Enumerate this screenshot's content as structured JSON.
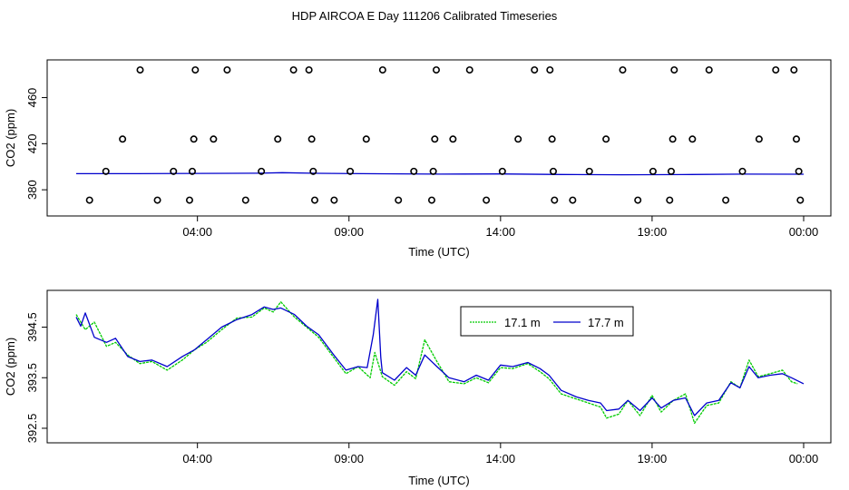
{
  "page": {
    "title": "HDP AIRCOA E  Day 111206  Calibrated Timeseries"
  },
  "chart_data": [
    {
      "type": "scatter",
      "xlabel": "Time (UTC)",
      "ylabel": "CO2 (ppm)",
      "x_tick_labels": [
        "04:00",
        "09:00",
        "14:00",
        "19:00",
        "00:00"
      ],
      "x_tick_hours": [
        4,
        9,
        14,
        19,
        24
      ],
      "xlim_hours": [
        0,
        24
      ],
      "y_ticks": [
        380,
        420,
        460
      ],
      "ylim": [
        362,
        488
      ],
      "point_series": {
        "name": "",
        "marker": "open-circle",
        "color": "#000000",
        "points": [
          [
            0.44,
            371
          ],
          [
            0.98,
            396
          ],
          [
            1.53,
            424
          ],
          [
            2.11,
            484
          ],
          [
            2.68,
            371
          ],
          [
            3.21,
            396
          ],
          [
            3.74,
            371
          ],
          [
            3.83,
            396
          ],
          [
            3.88,
            424
          ],
          [
            3.93,
            484
          ],
          [
            4.53,
            424
          ],
          [
            4.98,
            484
          ],
          [
            5.59,
            371
          ],
          [
            6.11,
            396
          ],
          [
            6.65,
            424
          ],
          [
            7.17,
            484
          ],
          [
            7.68,
            484
          ],
          [
            7.77,
            424
          ],
          [
            7.82,
            396
          ],
          [
            7.87,
            371
          ],
          [
            8.51,
            371
          ],
          [
            9.04,
            396
          ],
          [
            9.57,
            424
          ],
          [
            10.11,
            484
          ],
          [
            10.63,
            371
          ],
          [
            11.14,
            396
          ],
          [
            11.73,
            371
          ],
          [
            11.78,
            396
          ],
          [
            11.83,
            424
          ],
          [
            11.88,
            484
          ],
          [
            12.43,
            424
          ],
          [
            12.98,
            484
          ],
          [
            13.53,
            371
          ],
          [
            14.06,
            396
          ],
          [
            14.58,
            424
          ],
          [
            15.12,
            484
          ],
          [
            15.63,
            484
          ],
          [
            15.7,
            424
          ],
          [
            15.74,
            396
          ],
          [
            15.78,
            371
          ],
          [
            16.38,
            371
          ],
          [
            16.93,
            396
          ],
          [
            17.48,
            424
          ],
          [
            18.03,
            484
          ],
          [
            18.53,
            371
          ],
          [
            19.03,
            396
          ],
          [
            19.58,
            371
          ],
          [
            19.63,
            396
          ],
          [
            19.68,
            424
          ],
          [
            19.73,
            484
          ],
          [
            20.33,
            424
          ],
          [
            20.88,
            484
          ],
          [
            21.43,
            371
          ],
          [
            21.98,
            396
          ],
          [
            22.53,
            424
          ],
          [
            23.08,
            484
          ],
          [
            23.68,
            484
          ],
          [
            23.76,
            424
          ],
          [
            23.84,
            396
          ],
          [
            23.89,
            371
          ]
        ]
      },
      "line_series": [
        {
          "name": "",
          "color": "#0000cc",
          "points": [
            [
              0.0,
              394.0
            ],
            [
              2.0,
              394.0
            ],
            [
              4.0,
              394.2
            ],
            [
              6.0,
              394.4
            ],
            [
              6.8,
              394.8
            ],
            [
              8.0,
              394.3
            ],
            [
              10.0,
              393.9
            ],
            [
              12.0,
              393.6
            ],
            [
              14.0,
              393.7
            ],
            [
              16.0,
              393.3
            ],
            [
              18.0,
              393.0
            ],
            [
              20.0,
              393.2
            ],
            [
              22.0,
              393.6
            ],
            [
              24.0,
              393.5
            ]
          ]
        }
      ]
    },
    {
      "type": "line",
      "xlabel": "Time (UTC)",
      "ylabel": "CO2 (ppm)",
      "x_tick_labels": [
        "04:00",
        "09:00",
        "14:00",
        "19:00",
        "00:00"
      ],
      "x_tick_hours": [
        4,
        9,
        14,
        19,
        24
      ],
      "xlim_hours": [
        0,
        24
      ],
      "y_ticks": [
        392.5,
        393.5,
        394.5
      ],
      "y_tick_labels": [
        "392.5",
        "393.5",
        "394.5"
      ],
      "ylim": [
        392.32,
        395.12
      ],
      "legend": {
        "placement": "top-center"
      },
      "series": [
        {
          "name": "17.1 m",
          "color": "#00cc00",
          "points": [
            [
              0.0,
              394.75
            ],
            [
              0.3,
              394.45
            ],
            [
              0.6,
              394.6
            ],
            [
              1.0,
              394.12
            ],
            [
              1.3,
              394.2
            ],
            [
              1.7,
              393.95
            ],
            [
              2.1,
              393.78
            ],
            [
              2.5,
              393.82
            ],
            [
              3.0,
              393.65
            ],
            [
              3.5,
              393.85
            ],
            [
              3.9,
              394.05
            ],
            [
              4.3,
              394.2
            ],
            [
              4.8,
              394.45
            ],
            [
              5.3,
              394.68
            ],
            [
              5.8,
              394.7
            ],
            [
              6.2,
              394.88
            ],
            [
              6.5,
              394.8
            ],
            [
              6.75,
              395.0
            ],
            [
              7.2,
              394.7
            ],
            [
              7.6,
              394.5
            ],
            [
              8.0,
              394.3
            ],
            [
              8.5,
              393.9
            ],
            [
              8.9,
              393.58
            ],
            [
              9.3,
              393.72
            ],
            [
              9.7,
              393.5
            ],
            [
              9.85,
              394.0
            ],
            [
              10.1,
              393.52
            ],
            [
              10.5,
              393.35
            ],
            [
              10.9,
              393.62
            ],
            [
              11.2,
              393.48
            ],
            [
              11.5,
              394.25
            ],
            [
              11.9,
              393.82
            ],
            [
              12.3,
              393.42
            ],
            [
              12.8,
              393.38
            ],
            [
              13.2,
              393.5
            ],
            [
              13.6,
              393.4
            ],
            [
              14.0,
              393.7
            ],
            [
              14.4,
              393.68
            ],
            [
              14.9,
              393.78
            ],
            [
              15.3,
              393.62
            ],
            [
              15.6,
              393.48
            ],
            [
              16.0,
              393.18
            ],
            [
              16.5,
              393.08
            ],
            [
              16.9,
              393.0
            ],
            [
              17.3,
              392.92
            ],
            [
              17.5,
              392.7
            ],
            [
              17.9,
              392.78
            ],
            [
              18.2,
              393.05
            ],
            [
              18.6,
              392.75
            ],
            [
              19.0,
              393.15
            ],
            [
              19.3,
              392.82
            ],
            [
              19.7,
              393.05
            ],
            [
              20.1,
              393.18
            ],
            [
              20.4,
              392.6
            ],
            [
              20.8,
              392.95
            ],
            [
              21.2,
              393.0
            ],
            [
              21.6,
              393.42
            ],
            [
              21.9,
              393.3
            ],
            [
              22.2,
              393.85
            ],
            [
              22.5,
              393.52
            ],
            [
              22.9,
              393.58
            ],
            [
              23.3,
              393.65
            ],
            [
              23.6,
              393.42
            ],
            [
              23.8,
              393.38
            ]
          ]
        },
        {
          "name": "17.7 m",
          "color": "#0000cc",
          "points": [
            [
              0.0,
              394.7
            ],
            [
              0.15,
              394.52
            ],
            [
              0.3,
              394.78
            ],
            [
              0.6,
              394.3
            ],
            [
              1.0,
              394.2
            ],
            [
              1.3,
              394.28
            ],
            [
              1.7,
              393.92
            ],
            [
              2.1,
              393.82
            ],
            [
              2.5,
              393.85
            ],
            [
              3.0,
              393.72
            ],
            [
              3.5,
              393.92
            ],
            [
              3.9,
              394.05
            ],
            [
              4.3,
              394.25
            ],
            [
              4.8,
              394.5
            ],
            [
              5.3,
              394.65
            ],
            [
              5.8,
              394.75
            ],
            [
              6.2,
              394.9
            ],
            [
              6.5,
              394.85
            ],
            [
              6.75,
              394.88
            ],
            [
              7.2,
              394.75
            ],
            [
              7.6,
              394.52
            ],
            [
              8.0,
              394.35
            ],
            [
              8.5,
              393.95
            ],
            [
              8.9,
              393.65
            ],
            [
              9.3,
              393.72
            ],
            [
              9.6,
              393.7
            ],
            [
              9.8,
              394.35
            ],
            [
              9.95,
              395.05
            ],
            [
              10.05,
              393.9
            ],
            [
              10.1,
              393.6
            ],
            [
              10.5,
              393.45
            ],
            [
              10.9,
              393.7
            ],
            [
              11.2,
              393.55
            ],
            [
              11.5,
              393.95
            ],
            [
              11.9,
              393.72
            ],
            [
              12.3,
              393.5
            ],
            [
              12.8,
              393.42
            ],
            [
              13.2,
              393.55
            ],
            [
              13.6,
              393.45
            ],
            [
              14.0,
              393.75
            ],
            [
              14.4,
              393.72
            ],
            [
              14.9,
              393.8
            ],
            [
              15.3,
              393.68
            ],
            [
              15.6,
              393.55
            ],
            [
              16.0,
              393.25
            ],
            [
              16.5,
              393.12
            ],
            [
              16.9,
              393.05
            ],
            [
              17.3,
              393.0
            ],
            [
              17.5,
              392.85
            ],
            [
              17.9,
              392.88
            ],
            [
              18.2,
              393.05
            ],
            [
              18.6,
              392.85
            ],
            [
              19.0,
              393.1
            ],
            [
              19.3,
              392.9
            ],
            [
              19.7,
              393.05
            ],
            [
              20.1,
              393.1
            ],
            [
              20.4,
              392.75
            ],
            [
              20.8,
              393.0
            ],
            [
              21.2,
              393.05
            ],
            [
              21.6,
              393.4
            ],
            [
              21.9,
              393.3
            ],
            [
              22.2,
              393.72
            ],
            [
              22.5,
              393.5
            ],
            [
              22.9,
              393.55
            ],
            [
              23.3,
              393.58
            ],
            [
              23.6,
              393.5
            ],
            [
              24.0,
              393.38
            ]
          ]
        }
      ]
    }
  ]
}
